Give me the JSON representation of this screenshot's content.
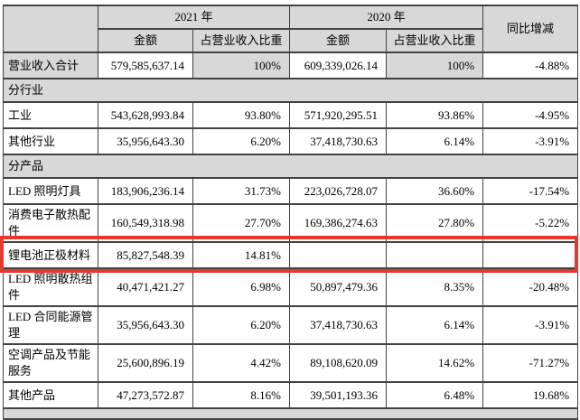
{
  "table": {
    "header": {
      "year_2021": "2021 年",
      "year_2020": "2020 年",
      "amount": "金额",
      "ratio": "占营业收入比重",
      "yoy": "同比增减"
    },
    "rows": [
      {
        "type": "data",
        "label": "营业收入合计",
        "a2021": "579,585,637.14",
        "p2021": "100%",
        "a2020": "609,339,026.14",
        "p2020": "100%",
        "yoy": "-4.88%",
        "shaded": true
      },
      {
        "type": "section",
        "label": "分行业"
      },
      {
        "type": "data",
        "label": "工业",
        "a2021": "543,628,993.84",
        "p2021": "93.80%",
        "a2020": "571,920,295.51",
        "p2020": "93.86%",
        "yoy": "-4.95%"
      },
      {
        "type": "data",
        "label": "其他行业",
        "a2021": "35,956,643.30",
        "p2021": "6.20%",
        "a2020": "37,418,730.63",
        "p2020": "6.14%",
        "yoy": "-3.91%"
      },
      {
        "type": "section",
        "label": "分产品"
      },
      {
        "type": "data",
        "label": "LED 照明灯具",
        "a2021": "183,906,236.14",
        "p2021": "31.73%",
        "a2020": "223,026,728.07",
        "p2020": "36.60%",
        "yoy": "-17.54%"
      },
      {
        "type": "data",
        "label": "消费电子散热配件",
        "a2021": "160,549,318.98",
        "p2021": "27.70%",
        "a2020": "169,386,274.63",
        "p2020": "27.80%",
        "yoy": "-5.22%"
      },
      {
        "type": "data",
        "label": "锂电池正极材料",
        "a2021": "85,827,548.39",
        "p2021": "14.81%",
        "a2020": "",
        "p2020": "",
        "yoy": "",
        "highlighted": true
      },
      {
        "type": "data",
        "label": "LED 照明散热组件",
        "a2021": "40,471,421.27",
        "p2021": "6.98%",
        "a2020": "50,897,479.36",
        "p2020": "8.35%",
        "yoy": "-20.48%"
      },
      {
        "type": "data",
        "label": "LED 合同能源管理",
        "a2021": "35,956,643.30",
        "p2021": "6.20%",
        "a2020": "37,418,730.63",
        "p2020": "6.14%",
        "yoy": "-3.91%"
      },
      {
        "type": "data",
        "label": "空调产品及节能服务",
        "a2021": "25,600,896.19",
        "p2021": "4.42%",
        "a2020": "89,108,620.09",
        "p2020": "14.62%",
        "yoy": "-71.27%"
      },
      {
        "type": "data",
        "label": "其他产品",
        "a2021": "47,273,572.87",
        "p2021": "8.16%",
        "a2020": "39,501,193.36",
        "p2020": "6.48%",
        "yoy": "19.68%"
      }
    ],
    "colors": {
      "highlight_red": "#e7382d",
      "shade_gray": "#d8d8d8"
    }
  }
}
